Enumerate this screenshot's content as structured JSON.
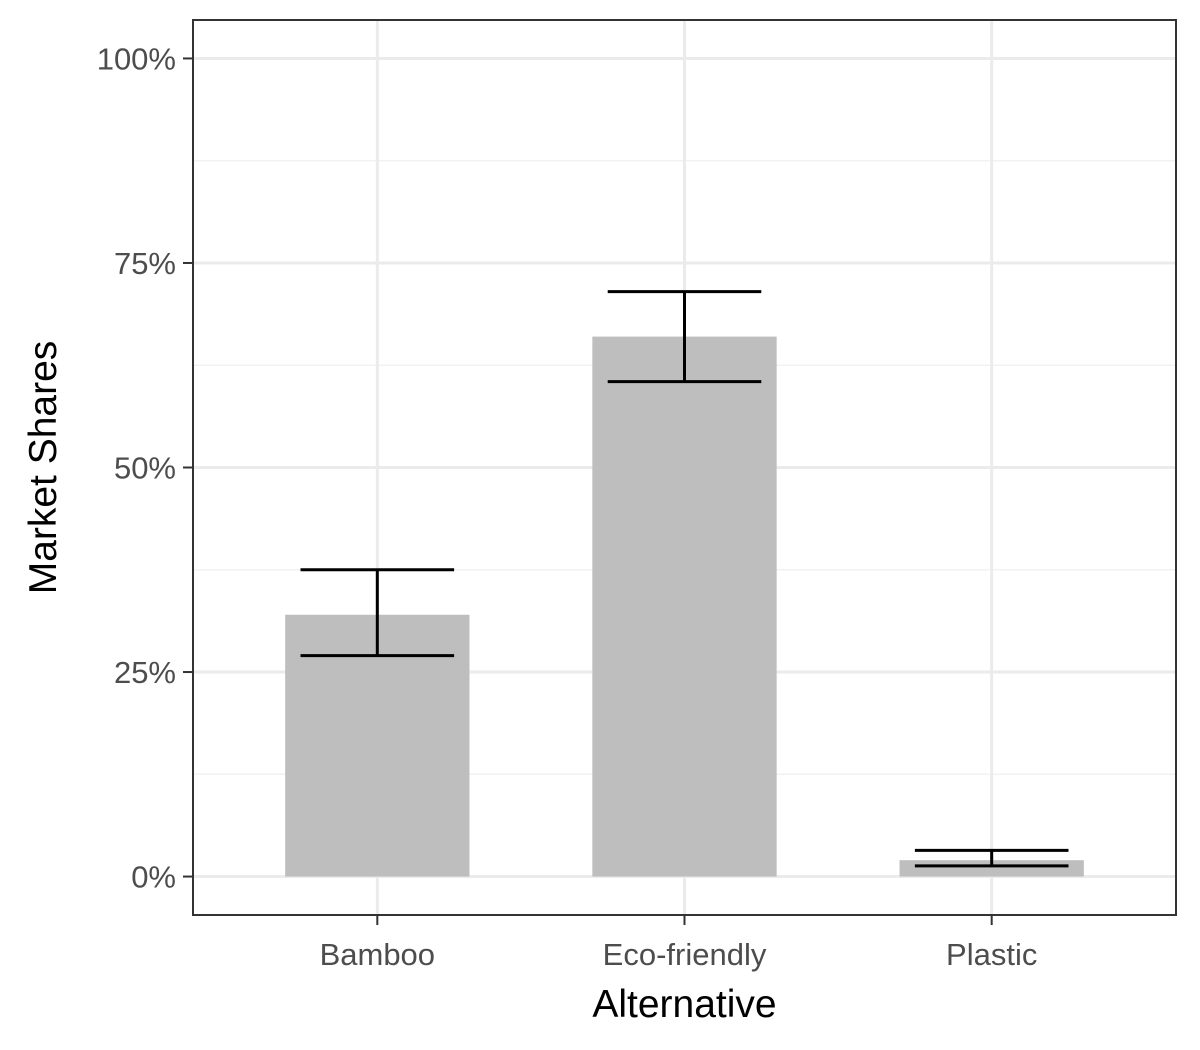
{
  "chart_data": {
    "type": "bar",
    "title": "",
    "xlabel": "Alternative",
    "ylabel": "Market Shares",
    "categories": [
      "Bamboo",
      "Eco-friendly",
      "Plastic"
    ],
    "values": [
      0.32,
      0.66,
      0.02
    ],
    "error_low": [
      0.27,
      0.605,
      0.013
    ],
    "error_high": [
      0.375,
      0.715,
      0.032
    ],
    "ylim": [
      -0.047,
      1.047
    ],
    "yticks": [
      0,
      0.25,
      0.5,
      0.75,
      1.0
    ],
    "ytick_labels": [
      "0%",
      "25%",
      "50%",
      "75%",
      "100%"
    ],
    "grid": true,
    "legend": "none",
    "colors": {
      "bar": "#bebebe",
      "error_bar": "#000000",
      "grid_major": "#ebebeb",
      "grid_minor": "#f2f2f2",
      "panel_border": "#333333",
      "tick_text": "#4d4d4d"
    }
  }
}
